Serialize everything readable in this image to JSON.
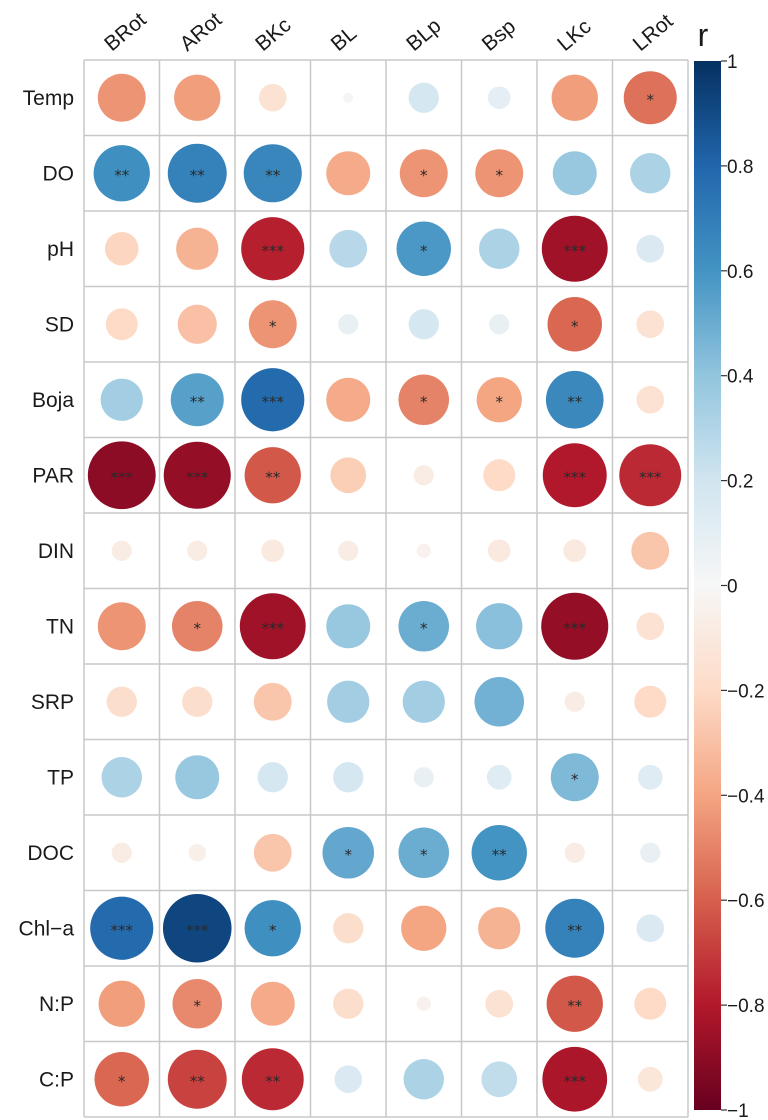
{
  "chart_data": {
    "type": "heatmap",
    "subtype": "correlation-circle",
    "columns": [
      "BRot",
      "ARot",
      "BKc",
      "BL",
      "BLp",
      "Bsp",
      "LKc",
      "LRot"
    ],
    "rows": [
      "Temp",
      "DO",
      "pH",
      "SD",
      "Boja",
      "PAR",
      "DIN",
      "TN",
      "SRP",
      "TP",
      "DOC",
      "Chl−a",
      "N:P",
      "C:P"
    ],
    "values": [
      [
        -0.45,
        -0.42,
        -0.15,
        0.02,
        0.18,
        0.1,
        -0.42,
        -0.55
      ],
      [
        0.62,
        0.68,
        0.66,
        -0.38,
        -0.45,
        -0.45,
        0.38,
        0.32
      ],
      [
        -0.22,
        -0.35,
        -0.78,
        0.28,
        0.58,
        0.32,
        -0.85,
        0.15
      ],
      [
        -0.2,
        -0.3,
        -0.45,
        0.08,
        0.18,
        0.08,
        -0.58,
        -0.15
      ],
      [
        0.35,
        0.55,
        0.78,
        -0.38,
        -0.5,
        -0.4,
        0.65,
        -0.15
      ],
      [
        -0.9,
        -0.88,
        -0.62,
        -0.25,
        -0.08,
        -0.2,
        -0.8,
        -0.75
      ],
      [
        -0.08,
        -0.08,
        -0.1,
        -0.08,
        -0.04,
        -0.1,
        -0.1,
        -0.28
      ],
      [
        -0.45,
        -0.5,
        -0.85,
        0.38,
        0.5,
        0.42,
        -0.88,
        -0.15
      ],
      [
        -0.18,
        -0.18,
        -0.28,
        0.35,
        0.35,
        0.48,
        -0.08,
        -0.2
      ],
      [
        0.32,
        0.38,
        0.18,
        0.18,
        0.08,
        0.12,
        0.45,
        0.12
      ],
      [
        -0.08,
        -0.06,
        -0.28,
        0.52,
        0.5,
        0.6,
        -0.08,
        0.08
      ],
      [
        0.78,
        0.92,
        0.62,
        -0.18,
        -0.4,
        -0.35,
        0.68,
        0.15
      ],
      [
        -0.42,
        -0.48,
        -0.38,
        -0.18,
        -0.04,
        -0.15,
        -0.62,
        -0.2
      ],
      [
        -0.58,
        -0.68,
        -0.75,
        0.15,
        0.32,
        0.25,
        -0.82,
        -0.12
      ]
    ],
    "significance": [
      [
        "",
        "",
        "",
        "",
        "",
        "",
        "",
        "*"
      ],
      [
        "**",
        "**",
        "**",
        "",
        "*",
        "*",
        "",
        ""
      ],
      [
        "",
        "",
        "***",
        "",
        "*",
        "",
        "***",
        ""
      ],
      [
        "",
        "",
        "*",
        "",
        "",
        "",
        "*",
        ""
      ],
      [
        "",
        "**",
        "***",
        "",
        "*",
        "*",
        "**",
        ""
      ],
      [
        "***",
        "***",
        "**",
        "",
        "",
        "",
        "***",
        "***"
      ],
      [
        "",
        "",
        "",
        "",
        "",
        "",
        "",
        ""
      ],
      [
        "",
        "*",
        "***",
        "",
        "*",
        "",
        "***",
        ""
      ],
      [
        "",
        "",
        "",
        "",
        "",
        "",
        "",
        ""
      ],
      [
        "",
        "",
        "",
        "",
        "",
        "",
        "*",
        ""
      ],
      [
        "",
        "",
        "",
        "*",
        "*",
        "**",
        "",
        ""
      ],
      [
        "***",
        "***",
        "*",
        "",
        "",
        "",
        "**",
        ""
      ],
      [
        "",
        "*",
        "",
        "",
        "",
        "",
        "**",
        ""
      ],
      [
        "*",
        "**",
        "**",
        "",
        "",
        "",
        "***",
        ""
      ]
    ],
    "legend": {
      "title": "r",
      "range": [
        -1,
        1
      ],
      "ticks": [
        1,
        0.8,
        0.6,
        0.4,
        0.2,
        0,
        -0.2,
        -0.4,
        -0.6,
        -0.8,
        -1
      ],
      "tick_labels": [
        "1",
        "0.8",
        "0.6",
        "0.4",
        "0.2",
        "0",
        "−0.2",
        "−0.4",
        "−0.6",
        "−0.8",
        "−1"
      ],
      "placement": "right"
    },
    "colors": {
      "negative_strong": "#67001f",
      "negative_mid": "#d6604d",
      "neutral": "#ffffff",
      "positive_mid": "#4393c3",
      "positive_strong": "#053061",
      "grid": "#c8c8c8"
    }
  }
}
